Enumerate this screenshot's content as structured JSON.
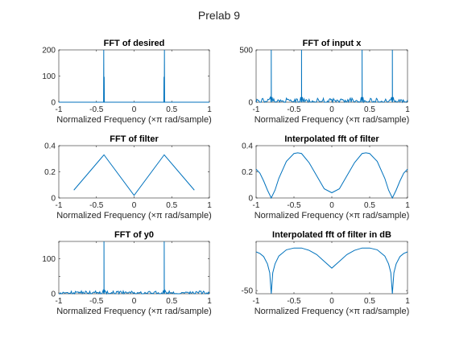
{
  "figure": {
    "title": "Prelab 9"
  },
  "chart_data": [
    {
      "id": "p1",
      "type": "line",
      "title": "FFT of desired",
      "xlabel": "Normalized Frequency (×π rad/sample)",
      "ylabel": "",
      "xlim": [
        -1,
        1
      ],
      "ylim": [
        0,
        200
      ],
      "xticks": [
        -1,
        -0.5,
        0,
        0.5,
        1
      ],
      "xticklabels": [
        "-1",
        "-0.5",
        "0",
        "0.5",
        "1"
      ],
      "yticks": [
        0,
        100,
        200
      ],
      "yticklabels": [
        "0",
        "100",
        "200"
      ],
      "grid": false,
      "series": [
        {
          "values": {
            "x": [
              -1,
              -0.405,
              -0.403,
              -0.401,
              -0.399,
              -0.397,
              -0.395,
              0.395,
              0.397,
              0.399,
              0.401,
              0.403,
              0.405,
              1
            ],
            "y": [
              0,
              0,
              200,
              0,
              0,
              97,
              0,
              0,
              97,
              0,
              0,
              200,
              0,
              0
            ]
          }
        }
      ]
    },
    {
      "id": "p2",
      "type": "line",
      "title": "FFT of input x",
      "xlabel": "Normalized Frequency (×π rad/sample)",
      "ylabel": "",
      "xlim": [
        -1,
        1
      ],
      "ylim": [
        0,
        500
      ],
      "xticks": [
        -1,
        -0.5,
        0,
        0.5,
        1
      ],
      "xticklabels": [
        "-1",
        "-0.5",
        "0",
        "0.5",
        "1"
      ],
      "yticks": [
        0,
        500
      ],
      "yticklabels": [
        "0",
        "500"
      ],
      "grid": false,
      "series": [
        {
          "peaks": [
            {
              "x": -0.8,
              "y": 500
            },
            {
              "x": -0.4,
              "y": 500
            },
            {
              "x": 0.4,
              "y": 500
            },
            {
              "x": 0.8,
              "y": 500
            }
          ],
          "noise_range": [
            0,
            40
          ]
        }
      ]
    },
    {
      "id": "p3",
      "type": "line",
      "title": "FFT of filter",
      "xlabel": "Normalized Frequency (×π rad/sample)",
      "ylabel": "",
      "xlim": [
        -1,
        1
      ],
      "ylim": [
        0,
        0.4
      ],
      "xticks": [
        -1,
        -0.5,
        0,
        0.5,
        1
      ],
      "xticklabels": [
        "-1",
        "-0.5",
        "0",
        "0.5",
        "1"
      ],
      "yticks": [
        0,
        0.2,
        0.4
      ],
      "yticklabels": [
        "0",
        "0.2",
        "0.4"
      ],
      "grid": false,
      "series": [
        {
          "values": {
            "x": [
              -0.8,
              -0.4,
              0,
              0.4,
              0.8
            ],
            "y": [
              0.06,
              0.33,
              0.02,
              0.33,
              0.06
            ]
          }
        }
      ]
    },
    {
      "id": "p4",
      "type": "line",
      "title": "Interpolated fft of filter",
      "xlabel": "Normalized Frequency (×π rad/sample)",
      "ylabel": "",
      "xlim": [
        -1,
        1
      ],
      "ylim": [
        0,
        0.4
      ],
      "xticks": [
        -1,
        -0.5,
        0,
        0.5,
        1
      ],
      "xticklabels": [
        "-1",
        "-0.5",
        "0",
        "0.5",
        "1"
      ],
      "yticks": [
        0,
        0.2,
        0.4
      ],
      "yticklabels": [
        "0",
        "0.2",
        "0.4"
      ],
      "grid": false,
      "series": [
        {
          "values": {
            "x": [
              -1,
              -0.95,
              -0.9,
              -0.85,
              -0.8,
              -0.75,
              -0.7,
              -0.6,
              -0.5,
              -0.45,
              -0.4,
              -0.3,
              -0.2,
              -0.1,
              0,
              0.1,
              0.2,
              0.3,
              0.4,
              0.45,
              0.5,
              0.6,
              0.7,
              0.75,
              0.8,
              0.85,
              0.9,
              0.95,
              1
            ],
            "y": [
              0.22,
              0.19,
              0.13,
              0.06,
              0.0,
              0.06,
              0.15,
              0.28,
              0.34,
              0.345,
              0.34,
              0.27,
              0.17,
              0.07,
              0.04,
              0.07,
              0.17,
              0.27,
              0.34,
              0.345,
              0.34,
              0.28,
              0.15,
              0.06,
              0.0,
              0.06,
              0.13,
              0.19,
              0.22
            ]
          }
        }
      ]
    },
    {
      "id": "p5",
      "type": "line",
      "title": "FFT of y0",
      "xlabel": "Normalized Frequency (×π rad/sample)",
      "ylabel": "",
      "xlim": [
        -1,
        1
      ],
      "ylim": [
        0,
        150
      ],
      "xticks": [
        -1,
        -0.5,
        0,
        0.5,
        1
      ],
      "xticklabels": [
        "-1",
        "-0.5",
        "0",
        "0.5",
        "1"
      ],
      "yticks": [
        0,
        50,
        100,
        150
      ],
      "yticklabels": [
        "0",
        "",
        "100",
        ""
      ],
      "grid": false,
      "series": [
        {
          "peaks": [
            {
              "x": -0.4,
              "y": 150
            },
            {
              "x": 0.4,
              "y": 150
            }
          ],
          "noise_range": [
            0,
            8
          ]
        }
      ]
    },
    {
      "id": "p6",
      "type": "line",
      "title": "Interpolated fft of filter in dB",
      "xlabel": "Normalized Frequency (×π rad/sample)",
      "ylabel": "",
      "xlim": [
        -1,
        1
      ],
      "ylim": [
        -53,
        -3
      ],
      "xticks": [
        -1,
        -0.5,
        0,
        0.5,
        1
      ],
      "xticklabels": [
        "-1",
        "-0.5",
        "0",
        "0.5",
        "1"
      ],
      "yticks": [
        -50
      ],
      "yticklabels": [
        "-50"
      ],
      "grid": false,
      "series": [
        {
          "values": {
            "x": [
              -1,
              -0.95,
              -0.9,
              -0.85,
              -0.82,
              -0.8,
              -0.78,
              -0.75,
              -0.7,
              -0.6,
              -0.5,
              -0.4,
              -0.3,
              -0.2,
              -0.1,
              0,
              0.1,
              0.2,
              0.3,
              0.4,
              0.5,
              0.6,
              0.7,
              0.75,
              0.78,
              0.8,
              0.82,
              0.85,
              0.9,
              0.95,
              1
            ],
            "y": [
              -13,
              -14.5,
              -17.5,
              -24.5,
              -33,
              -53,
              -33,
              -24.5,
              -17,
              -11,
              -9.3,
              -9.3,
              -11.5,
              -15.5,
              -22,
              -28.5,
              -22,
              -15.5,
              -11.5,
              -9.3,
              -9.3,
              -11,
              -17,
              -24.5,
              -33,
              -53,
              -33,
              -24.5,
              -17.5,
              -14.5,
              -13
            ]
          }
        }
      ]
    }
  ]
}
